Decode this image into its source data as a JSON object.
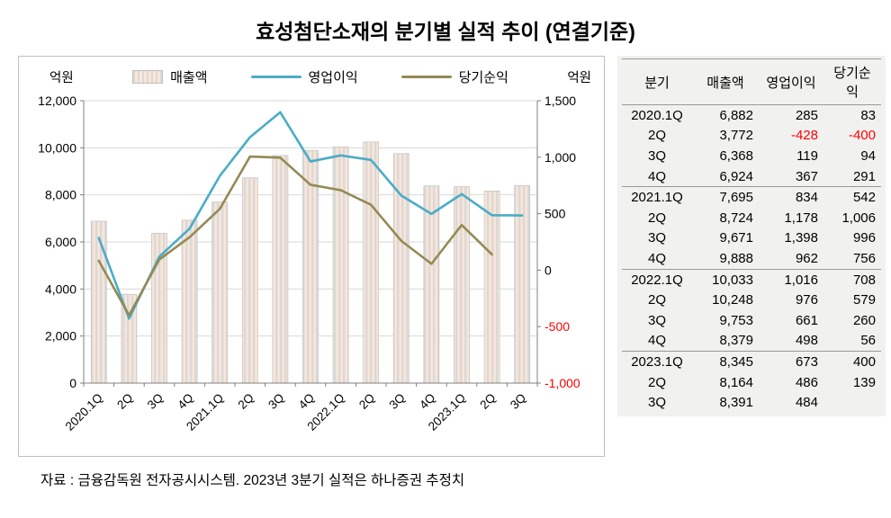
{
  "title": "효성첨단소재의 분기별 실적 추이 (연결기준)",
  "source_note": "자료 : 금융감독원 전자공시시스템. 2023년 3분기 실적은 하나증권 추정치",
  "chart_data": {
    "type": "bar+line",
    "categories": [
      "2020.1Q",
      "2Q",
      "3Q",
      "4Q",
      "2021.1Q",
      "2Q",
      "3Q",
      "4Q",
      "2022.1Q",
      "2Q",
      "3Q",
      "4Q",
      "2023.1Q",
      "2Q",
      "3Q"
    ],
    "series": [
      {
        "name": "매출액",
        "type": "bar",
        "axis": "left",
        "values": [
          6882,
          3772,
          6368,
          6924,
          7695,
          8724,
          9671,
          9888,
          10033,
          10248,
          9753,
          8379,
          8345,
          8164,
          8391
        ],
        "fill_style": "striped",
        "stripe_colors": [
          "#d9d9d9",
          "#fbe5d6"
        ]
      },
      {
        "name": "영업이익",
        "type": "line",
        "axis": "right",
        "color": "#4BACC6",
        "values": [
          285,
          -428,
          119,
          367,
          834,
          1178,
          1398,
          962,
          1016,
          976,
          661,
          498,
          673,
          486,
          484
        ]
      },
      {
        "name": "당기순익",
        "type": "line",
        "axis": "right",
        "color": "#948A54",
        "values": [
          83,
          -400,
          94,
          291,
          542,
          1006,
          996,
          756,
          708,
          579,
          260,
          56,
          400,
          139,
          null
        ]
      }
    ],
    "left_axis": {
      "label": "억원",
      "min": 0,
      "max": 12000,
      "step": 2000,
      "ticks": [
        "0",
        "2,000",
        "4,000",
        "6,000",
        "8,000",
        "10,000",
        "12,000"
      ]
    },
    "right_axis": {
      "label": "억원",
      "min": -1000,
      "max": 1500,
      "step": 500,
      "ticks": [
        "-1,000",
        "-500",
        "0",
        "500",
        "1,000",
        "1,500"
      ],
      "negative_color": "#ff0000"
    },
    "grid": true,
    "legend_position": "top"
  },
  "table": {
    "headers": [
      "분기",
      "매출액",
      "영업이익",
      "당기순익"
    ],
    "rows": [
      [
        "2020.1Q",
        "6,882",
        "285",
        "83"
      ],
      [
        "2Q",
        "3,772",
        "-428",
        "-400"
      ],
      [
        "3Q",
        "6,368",
        "119",
        "94"
      ],
      [
        "4Q",
        "6,924",
        "367",
        "291"
      ],
      [
        "2021.1Q",
        "7,695",
        "834",
        "542"
      ],
      [
        "2Q",
        "8,724",
        "1,178",
        "1,006"
      ],
      [
        "3Q",
        "9,671",
        "1,398",
        "996"
      ],
      [
        "4Q",
        "9,888",
        "962",
        "756"
      ],
      [
        "2022.1Q",
        "10,033",
        "1,016",
        "708"
      ],
      [
        "2Q",
        "10,248",
        "976",
        "579"
      ],
      [
        "3Q",
        "9,753",
        "661",
        "260"
      ],
      [
        "4Q",
        "8,379",
        "498",
        "56"
      ],
      [
        "2023.1Q",
        "8,345",
        "673",
        "400"
      ],
      [
        "2Q",
        "8,164",
        "486",
        "139"
      ],
      [
        "3Q",
        "8,391",
        "484",
        ""
      ]
    ],
    "group_breaks": [
      4,
      8,
      12
    ],
    "negative_color": "#ff0000"
  }
}
